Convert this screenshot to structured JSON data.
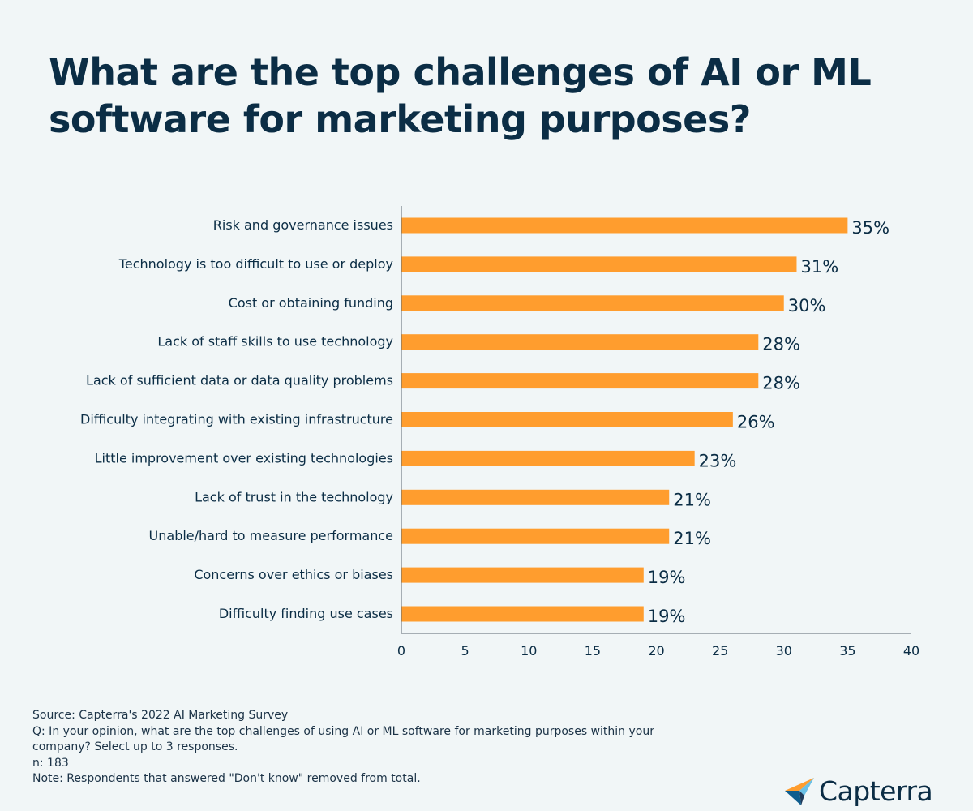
{
  "title": "What are the top challenges of AI or ML software for marketing purposes?",
  "chart_data": {
    "type": "bar",
    "orientation": "horizontal",
    "categories": [
      "Risk and governance issues",
      "Technology is too difficult to use or deploy",
      "Cost or obtaining funding",
      "Lack of staff skills to use technology",
      "Lack of sufficient data or data quality problems",
      "Difficulty integrating with existing infrastructure",
      "Little improvement over existing technologies",
      "Lack of trust in the technology",
      "Unable/hard to measure performance",
      "Concerns over ethics or biases",
      "Difficulty finding use cases"
    ],
    "values": [
      35,
      31,
      30,
      28,
      28,
      26,
      23,
      21,
      21,
      19,
      19
    ],
    "value_labels": [
      "35%",
      "31%",
      "30%",
      "28%",
      "28%",
      "26%",
      "23%",
      "21%",
      "21%",
      "19%",
      "19%"
    ],
    "xlim": [
      0,
      40
    ],
    "xticks": [
      "0",
      "5",
      "10",
      "15",
      "20",
      "25",
      "30",
      "35",
      "40"
    ],
    "bar_color": "#ff9d2e",
    "axis_color": "#5a6670",
    "grid": false
  },
  "footnotes": {
    "source": "Source: Capterra's 2022 AI Marketing Survey",
    "question": "Q: In your opinion, what are the top challenges of using AI or ML software for marketing purposes within your company? Select up to 3 responses.",
    "n": "n: 183",
    "note": "Note: Respondents that answered \"Don't know\" removed from total."
  },
  "logo": {
    "text": "Capterra",
    "icon": "capterra-logo-icon"
  }
}
